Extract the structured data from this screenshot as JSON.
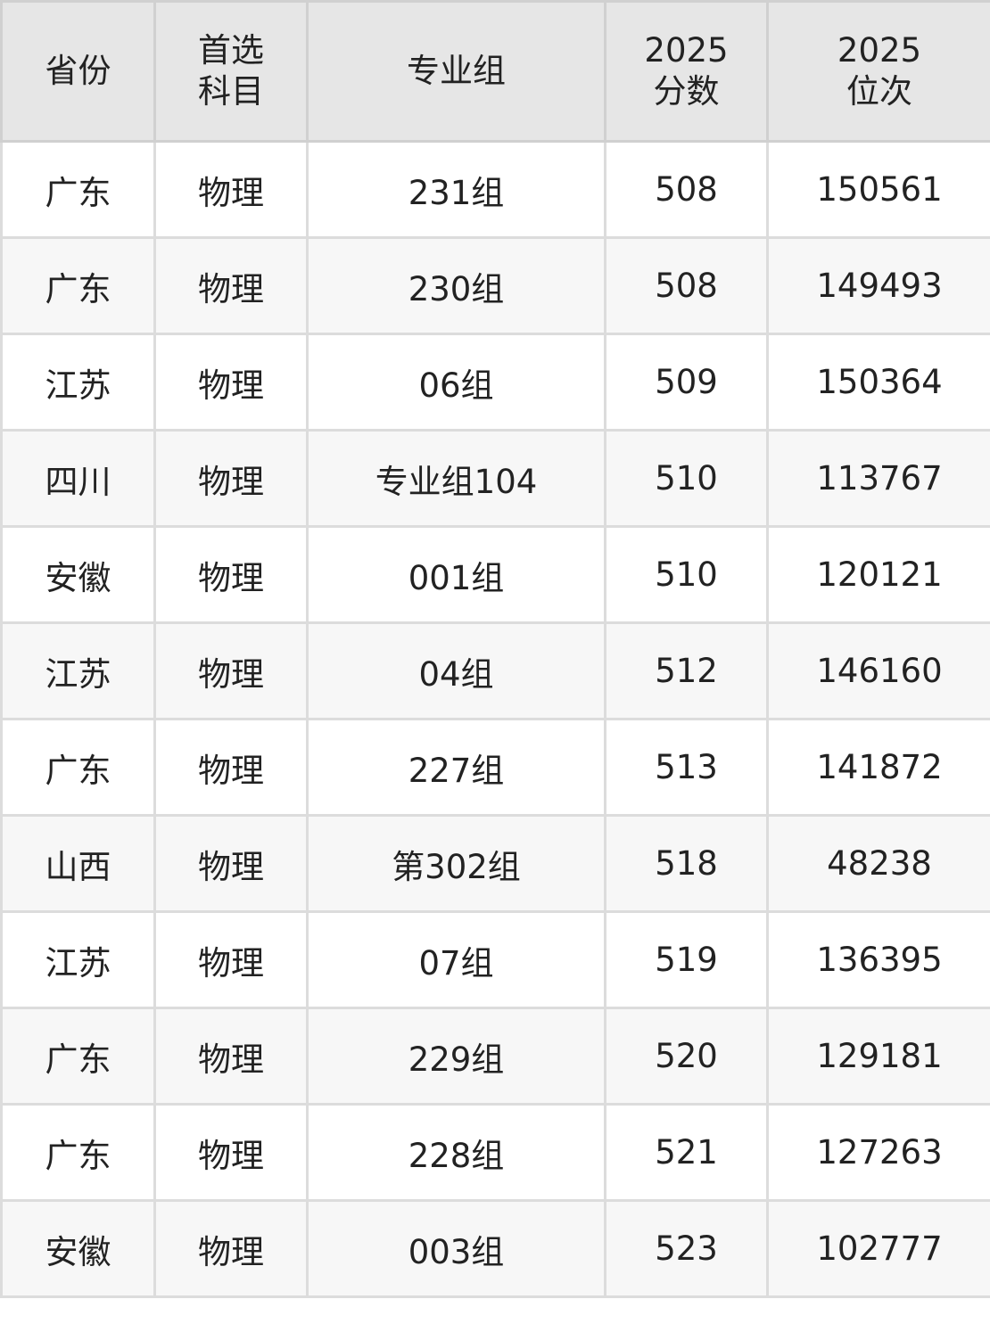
{
  "headers": [
    [
      "省份"
    ],
    [
      "首选",
      "科目"
    ],
    [
      "专业组"
    ],
    [
      "2025",
      "分数"
    ],
    [
      "2025",
      "位次"
    ]
  ],
  "rows": [
    [
      "广东",
      "物理",
      "231组",
      "508",
      "150561"
    ],
    [
      "广东",
      "物理",
      "230组",
      "508",
      "149493"
    ],
    [
      "江苏",
      "物理",
      "06组",
      "509",
      "150364"
    ],
    [
      "四川",
      "物理",
      "专业组104",
      "510",
      "113767"
    ],
    [
      "安徽",
      "物理",
      "001组",
      "510",
      "120121"
    ],
    [
      "江苏",
      "物理",
      "04组",
      "512",
      "146160"
    ],
    [
      "广东",
      "物理",
      "227组",
      "513",
      "141872"
    ],
    [
      "山西",
      "物理",
      "第302组",
      "518",
      "48238"
    ],
    [
      "江苏",
      "物理",
      "07组",
      "519",
      "136395"
    ],
    [
      "广东",
      "物理",
      "229组",
      "520",
      "129181"
    ],
    [
      "广东",
      "物理",
      "228组",
      "521",
      "127263"
    ],
    [
      "安徽",
      "物理",
      "003组",
      "523",
      "102777"
    ]
  ]
}
